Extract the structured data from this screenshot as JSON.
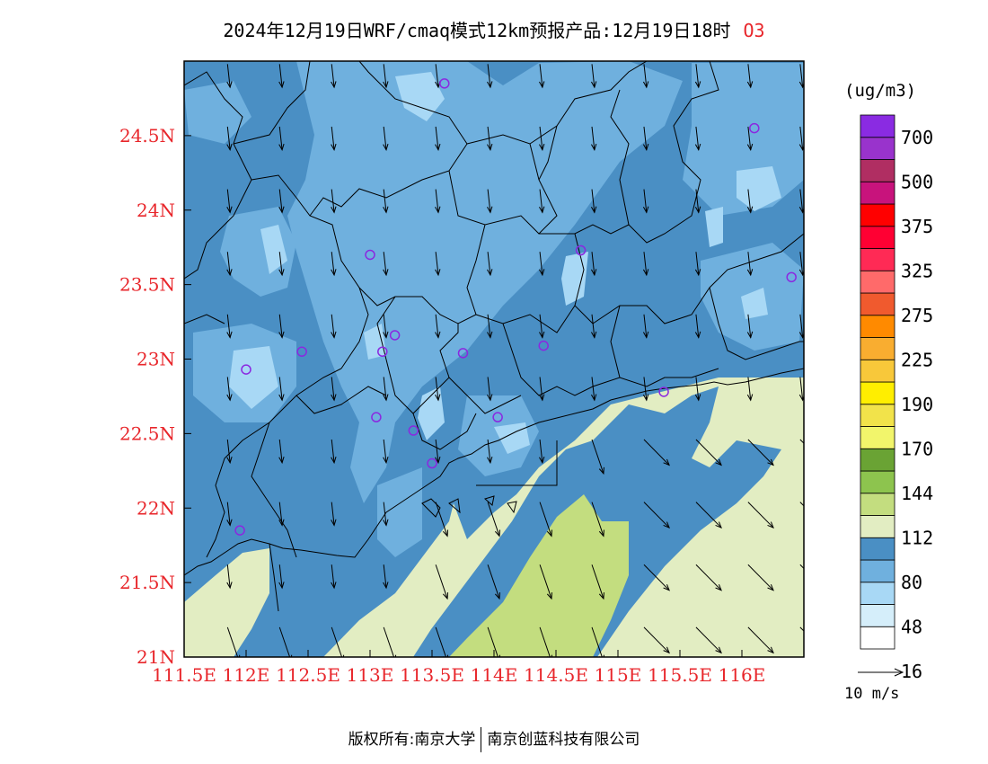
{
  "title": "2024年12月19日WRF/cmaq模式12km预报产品:12月19日18时",
  "species": "O3",
  "unit": "(ug/m3)",
  "vector_reference": "10 m/s",
  "footer": {
    "left": "版权所有:南京大学",
    "right": "南京创蓝科技有限公司"
  },
  "colors": {
    "base": "#4a8fc4",
    "c48": "#6fb0de",
    "c32": "#a8d8f5",
    "c80": "#e2edc2",
    "c112": "#c3dd7f",
    "land_line": "#000000",
    "axis_text": "#e8262b",
    "station": "#8b28e0"
  },
  "map": {
    "lon_range": [
      111.5,
      116.5
    ],
    "lat_range": [
      21,
      25
    ],
    "lon_ticks": [
      "111.5E",
      "112E",
      "112.5E",
      "113E",
      "113.5E",
      "114E",
      "114.5E",
      "115E",
      "115.5E",
      "116E"
    ],
    "lat_ticks": [
      "21N",
      "21.5N",
      "22N",
      "22.5N",
      "23N",
      "23.5N",
      "24N",
      "24.5N"
    ]
  },
  "legend": {
    "labels": [
      "700",
      "500",
      "375",
      "325",
      "275",
      "225",
      "190",
      "170",
      "144",
      "112",
      "80",
      "48",
      "16"
    ],
    "colors": [
      "#ffffff",
      "#d5eefa",
      "#a8d8f5",
      "#6fb0de",
      "#4a8fc4",
      "#e2edc2",
      "#c3dd7f",
      "#8dc44e",
      "#6aa334",
      "#f2f56b",
      "#f2e34a",
      "#ffee00",
      "#f8c83a",
      "#f9ad30",
      "#ff8a00",
      "#f05a2e",
      "#ff6a6a",
      "#ff2a55",
      "#ff0033",
      "#ff0000",
      "#c8137c",
      "#b02e62",
      "#9933cc",
      "#8a2be2"
    ]
  },
  "stations": [
    {
      "lon": 113.6,
      "lat": 24.85
    },
    {
      "lon": 116.1,
      "lat": 24.55
    },
    {
      "lon": 113.0,
      "lat": 23.7
    },
    {
      "lon": 114.7,
      "lat": 23.73
    },
    {
      "lon": 116.4,
      "lat": 23.55
    },
    {
      "lon": 113.2,
      "lat": 23.16
    },
    {
      "lon": 112.45,
      "lat": 23.05
    },
    {
      "lon": 113.1,
      "lat": 23.05
    },
    {
      "lon": 113.75,
      "lat": 23.04
    },
    {
      "lon": 114.4,
      "lat": 23.09
    },
    {
      "lon": 112.0,
      "lat": 22.93
    },
    {
      "lon": 115.37,
      "lat": 22.78
    },
    {
      "lon": 113.05,
      "lat": 22.61
    },
    {
      "lon": 114.03,
      "lat": 22.61
    },
    {
      "lon": 113.35,
      "lat": 22.52
    },
    {
      "lon": 113.5,
      "lat": 22.3
    },
    {
      "lon": 111.95,
      "lat": 21.85
    }
  ]
}
